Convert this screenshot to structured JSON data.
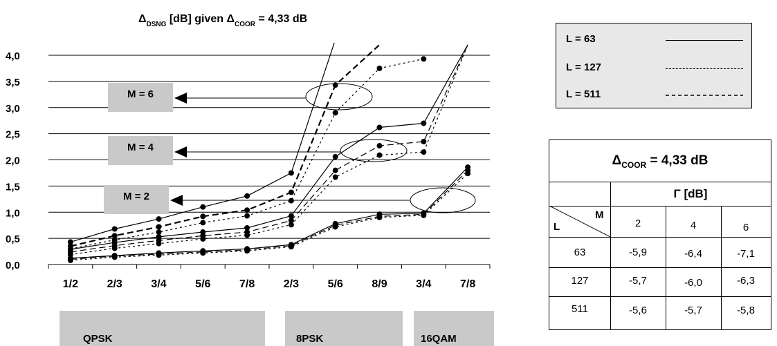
{
  "chart_data": {
    "type": "line",
    "title": {
      "symbol": "Δ",
      "subscript": "DSNG",
      "text": " [dB] given ",
      "symbol2": "Δ",
      "subscript2": "COOR",
      "value": " = 4,33 dB"
    },
    "categories": [
      "1/2",
      "2/3",
      "3/4",
      "5/6",
      "7/8",
      "2/3",
      "5/6",
      "8/9",
      "3/4",
      "7/8"
    ],
    "ylim": [
      0,
      4
    ],
    "yticks": [
      "0,0",
      "0,5",
      "1,0",
      "1,5",
      "2,0",
      "2,5",
      "3,0",
      "3,5",
      "4,0"
    ],
    "grid": true,
    "series": [
      {
        "group": "M=6",
        "style": "L = 63",
        "values": [
          0.43,
          0.68,
          0.87,
          1.1,
          1.31,
          1.75,
          4.3,
          null,
          null,
          null
        ]
      },
      {
        "group": "M=6",
        "style": "L = 127",
        "values": [
          0.35,
          0.55,
          0.72,
          0.92,
          1.04,
          1.38,
          3.43,
          4.2,
          null,
          null
        ]
      },
      {
        "group": "M=6",
        "style": "L = 511",
        "values": [
          0.3,
          0.47,
          0.62,
          0.8,
          0.93,
          1.22,
          2.9,
          3.75,
          3.93,
          null
        ]
      },
      {
        "group": "M=4",
        "style": "L = 63",
        "values": [
          0.29,
          0.42,
          0.53,
          0.62,
          0.7,
          0.93,
          2.06,
          2.62,
          2.7,
          4.2
        ]
      },
      {
        "group": "M=4",
        "style": "L = 127",
        "values": [
          0.24,
          0.36,
          0.46,
          0.55,
          0.62,
          0.84,
          1.8,
          2.27,
          2.35,
          4.2
        ]
      },
      {
        "group": "M=4",
        "style": "L = 511",
        "values": [
          0.19,
          0.31,
          0.4,
          0.49,
          0.56,
          0.76,
          1.67,
          2.09,
          2.15,
          4.2
        ]
      },
      {
        "group": "M=2",
        "style": "L = 63",
        "values": [
          0.12,
          0.17,
          0.22,
          0.26,
          0.3,
          0.38,
          0.78,
          0.96,
          0.98,
          1.86
        ]
      },
      {
        "group": "M=2",
        "style": "L = 127",
        "values": [
          0.1,
          0.16,
          0.2,
          0.24,
          0.28,
          0.36,
          0.75,
          0.92,
          0.96,
          1.8
        ]
      },
      {
        "group": "M=2",
        "style": "L = 511",
        "values": [
          0.08,
          0.14,
          0.18,
          0.22,
          0.26,
          0.34,
          0.72,
          0.9,
          0.94,
          1.74
        ]
      }
    ],
    "modulation_groups": [
      "QPSK",
      "8PSK",
      "16QAM"
    ],
    "m_labels": [
      "M = 6",
      "M = 4",
      "M = 2"
    ],
    "legend": {
      "position": "top-right",
      "entries": [
        {
          "label": "L = 63",
          "dash": "solid"
        },
        {
          "label": "L = 127",
          "dash": "long-dash"
        },
        {
          "label": "L = 511",
          "dash": "short-dash"
        }
      ]
    }
  },
  "coor_table": {
    "title": {
      "symbol": "Δ",
      "subscript": "COOR",
      "value": " = 4,33 dB"
    },
    "gamma_header": {
      "symbol": "Γ",
      "text": " [dB]"
    },
    "corner_row_label": "L",
    "corner_col_label": "M",
    "m_values": [
      "2",
      "4",
      "6"
    ],
    "rows": [
      {
        "L": "63",
        "values": [
          "-5,9",
          "-6,4",
          "-7,1"
        ]
      },
      {
        "L": "127",
        "values": [
          "-5,7",
          "-6,0",
          "-6,3"
        ]
      },
      {
        "L": "511",
        "values": [
          "-5,6",
          "-5,7",
          "-5,8"
        ]
      }
    ]
  },
  "colors": {
    "panel": "#c9c9c9",
    "legend_bg": "#e8e8e8",
    "line": "#000000"
  }
}
